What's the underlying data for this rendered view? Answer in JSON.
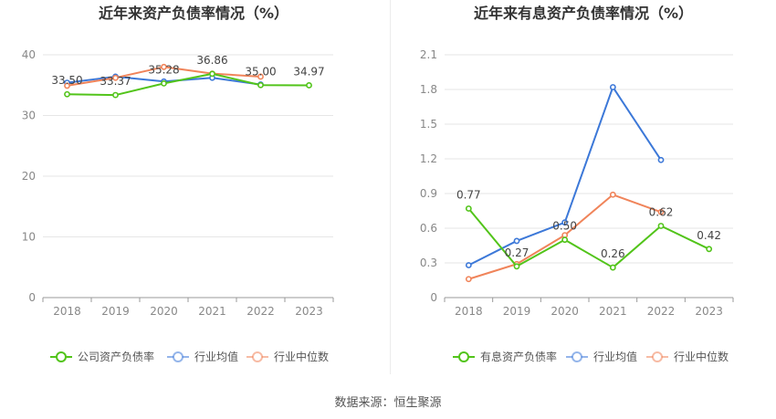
{
  "source_note": "数据来源：恒生聚源",
  "colors": {
    "company": "#52c41a",
    "industry_avg": "#3c78d8",
    "industry_median": "#f0845a"
  },
  "chart_data": [
    {
      "type": "line",
      "title": "近年来资产负债率情况（%）",
      "categories": [
        "2018",
        "2019",
        "2020",
        "2021",
        "2022",
        "2023"
      ],
      "ylim": [
        0,
        40
      ],
      "yticks": [
        "0",
        "10",
        "20",
        "30",
        "40"
      ],
      "yticks_values": [
        0,
        10,
        20,
        30,
        40
      ],
      "grid": true,
      "legend_position": "bottom",
      "series": [
        {
          "name": "公司资产负债率",
          "color": "#52c41a",
          "values": [
            33.5,
            33.37,
            35.28,
            36.86,
            35.0,
            34.97
          ],
          "labels": [
            "33.50",
            "33.37",
            "35.28",
            "36.86",
            "35.00",
            "34.97"
          ]
        },
        {
          "name": "行业均值",
          "color": "#3c78d8",
          "values": [
            35.4,
            36.4,
            35.6,
            36.2,
            35.1,
            null
          ]
        },
        {
          "name": "行业中位数",
          "color": "#f0845a",
          "values": [
            34.9,
            36.2,
            38.0,
            36.9,
            36.4,
            null
          ]
        }
      ]
    },
    {
      "type": "line",
      "title": "近年来有息资产负债率情况（%）",
      "categories": [
        "2018",
        "2019",
        "2020",
        "2021",
        "2022",
        "2023"
      ],
      "ylim": [
        0,
        2.1
      ],
      "yticks": [
        "0",
        "0.3",
        "0.6",
        "0.9",
        "1.2",
        "1.5",
        "1.8",
        "2.1"
      ],
      "yticks_values": [
        0,
        0.3,
        0.6,
        0.9,
        1.2,
        1.5,
        1.8,
        2.1
      ],
      "grid": true,
      "legend_position": "bottom",
      "series": [
        {
          "name": "有息资产负债率",
          "color": "#52c41a",
          "values": [
            0.77,
            0.27,
            0.5,
            0.26,
            0.62,
            0.42
          ],
          "labels": [
            "0.77",
            "0.27",
            "0.50",
            "0.26",
            "0.62",
            "0.42"
          ]
        },
        {
          "name": "行业均值",
          "color": "#3c78d8",
          "values": [
            0.28,
            0.49,
            0.65,
            1.82,
            1.19,
            null
          ]
        },
        {
          "name": "行业中位数",
          "color": "#f0845a",
          "values": [
            0.16,
            0.29,
            0.54,
            0.89,
            0.74,
            null
          ]
        }
      ]
    }
  ]
}
